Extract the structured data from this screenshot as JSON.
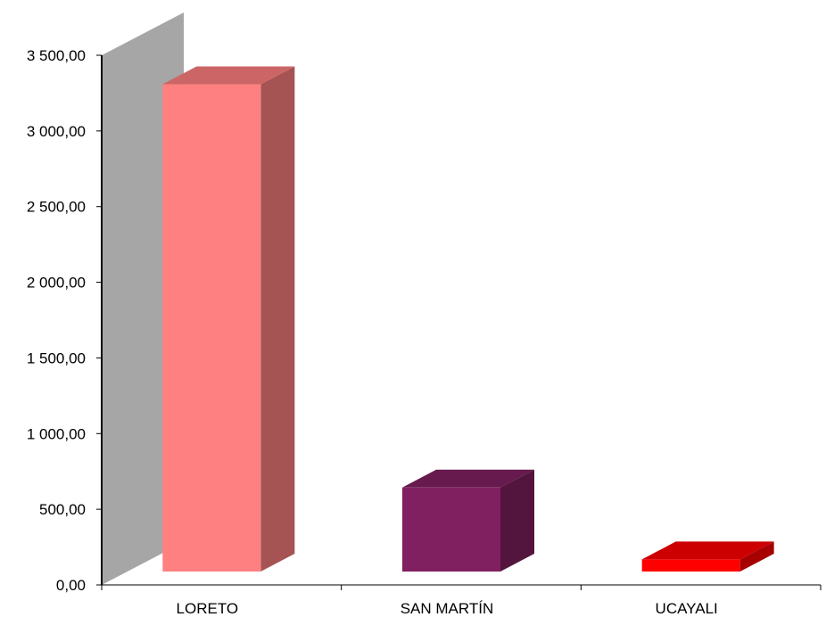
{
  "chart_data": {
    "type": "bar",
    "three_d": true,
    "categories": [
      "LORETO",
      "SAN MARTÍN",
      "UCAYALI"
    ],
    "values": [
      3220,
      555,
      80
    ],
    "series_colors": [
      "#FF8080",
      "#802060",
      "#FF0000"
    ],
    "ylim": [
      0,
      3500
    ],
    "yticks": [
      0,
      500,
      1000,
      1500,
      2000,
      2500,
      3000,
      3500
    ],
    "ytick_labels": [
      "0,00",
      "500,00",
      "1 000,00",
      "1 500,00",
      "2 000,00",
      "2 500,00",
      "3 000,00",
      "3 500,00"
    ],
    "title": "",
    "xlabel": "",
    "ylabel": "",
    "grid": false,
    "legend": false,
    "wall_color": "#A6A6A6"
  }
}
